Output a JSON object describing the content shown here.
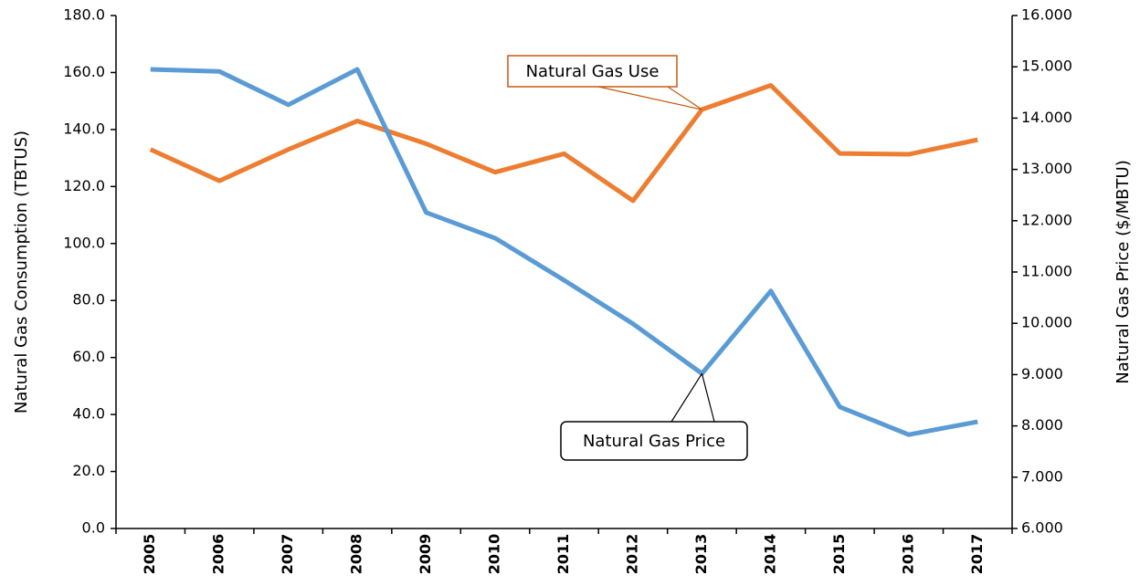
{
  "chart_data": {
    "type": "line",
    "categories": [
      "2005",
      "2006",
      "2007",
      "2008",
      "2009",
      "2010",
      "2011",
      "2012",
      "2013",
      "2014",
      "2015",
      "2016",
      "2017"
    ],
    "series": [
      {
        "name": "Natural Gas Use",
        "color": "#ed7d31",
        "axis": "y",
        "values": [
          133,
          122,
          133,
          143,
          135,
          125,
          131.5,
          115,
          147,
          155.5,
          131.6,
          131.3,
          136.4
        ]
      },
      {
        "name": "Natural Gas Price",
        "color": "#5b9bd5",
        "axis": "y2",
        "values": [
          14.95,
          14.91,
          14.26,
          14.95,
          12.16,
          11.66,
          10.84,
          9.99,
          9.02,
          10.63,
          8.37,
          7.83,
          8.08
        ]
      }
    ],
    "ylabel": "Natural Gas Consumption (TBTUS)",
    "y2label": "Natural Gas Price ($/MBTU)",
    "ylim": [
      0,
      180
    ],
    "yticks": [
      {
        "value": 0,
        "label": "0.0"
      },
      {
        "value": 20,
        "label": "20.0"
      },
      {
        "value": 40,
        "label": "40.0"
      },
      {
        "value": 60,
        "label": "60.0"
      },
      {
        "value": 80,
        "label": "80.0"
      },
      {
        "value": 100,
        "label": "100.0"
      },
      {
        "value": 120,
        "label": "120.0"
      },
      {
        "value": 140,
        "label": "140.0"
      },
      {
        "value": 160,
        "label": "160.0"
      },
      {
        "value": 180,
        "label": "180.0"
      }
    ],
    "y2lim": [
      6,
      16
    ],
    "y2ticks": [
      {
        "value": 6,
        "label": "6.000"
      },
      {
        "value": 7,
        "label": "7.000"
      },
      {
        "value": 8,
        "label": "8.000"
      },
      {
        "value": 9,
        "label": "9.000"
      },
      {
        "value": 10,
        "label": "10.000"
      },
      {
        "value": 11,
        "label": "11.000"
      },
      {
        "value": 12,
        "label": "12.000"
      },
      {
        "value": 13,
        "label": "13.000"
      },
      {
        "value": 14,
        "label": "14.000"
      },
      {
        "value": 15,
        "label": "15.000"
      },
      {
        "value": 16,
        "label": "16.000"
      }
    ],
    "grid": false
  }
}
